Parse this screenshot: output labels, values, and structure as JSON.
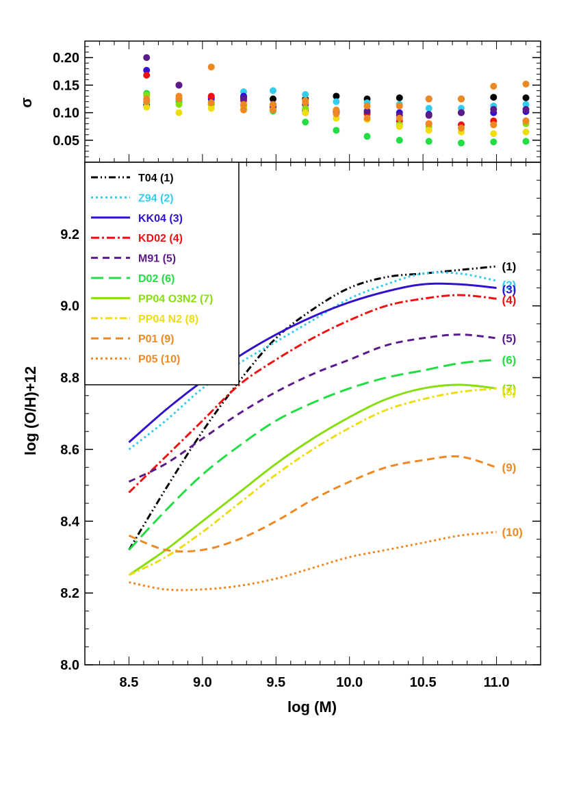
{
  "chart_data": [
    {
      "type": "scatter",
      "panel": "top",
      "ylabel": "σ",
      "xlim": [
        8.2,
        11.3
      ],
      "ylim": [
        0.01,
        0.23
      ],
      "yticks": [
        "0.20",
        "0.15",
        "0.10",
        "0.05"
      ],
      "ytick_values": [
        0.2,
        0.15,
        0.1,
        0.05
      ],
      "x": [
        8.62,
        8.84,
        9.06,
        9.28,
        9.48,
        9.7,
        9.91,
        10.12,
        10.34,
        10.54,
        10.76,
        10.98,
        11.2
      ],
      "series": [
        {
          "name": "T04",
          "color": "#000000",
          "values": [
            0.115,
            0.125,
            0.128,
            0.128,
            0.125,
            0.125,
            0.13,
            0.125,
            0.127,
            0.125,
            0.125,
            0.128,
            0.127
          ]
        },
        {
          "name": "Z94",
          "color": "#33ccee",
          "values": [
            0.118,
            0.12,
            0.12,
            0.138,
            0.14,
            0.133,
            0.12,
            0.118,
            0.115,
            0.108,
            0.108,
            0.112,
            0.115
          ]
        },
        {
          "name": "KK04",
          "color": "#3311cc",
          "values": [
            0.177,
            0.15,
            0.125,
            0.13,
            0.115,
            0.115,
            0.102,
            0.1,
            0.1,
            0.097,
            0.1,
            0.1,
            0.102
          ]
        },
        {
          "name": "KD02",
          "color": "#ee1111",
          "values": [
            0.168,
            0.15,
            0.13,
            0.122,
            0.11,
            0.1,
            0.1,
            0.098,
            0.085,
            0.08,
            0.078,
            0.085,
            0.085
          ]
        },
        {
          "name": "M91",
          "color": "#5a1a88",
          "values": [
            0.2,
            0.15,
            0.115,
            0.125,
            0.11,
            0.103,
            0.103,
            0.103,
            0.095,
            0.095,
            0.1,
            0.106,
            0.106
          ]
        },
        {
          "name": "D02",
          "color": "#22dd44",
          "values": [
            0.135,
            0.12,
            0.118,
            0.113,
            0.103,
            0.083,
            0.068,
            0.057,
            0.05,
            0.048,
            0.045,
            0.047,
            0.048
          ]
        },
        {
          "name": "PP04 O3N2",
          "color": "#88dd11",
          "values": [
            0.132,
            0.115,
            0.115,
            0.11,
            0.105,
            0.108,
            0.09,
            0.088,
            0.078,
            0.075,
            0.072,
            0.078,
            0.08
          ]
        },
        {
          "name": "PP04 N2",
          "color": "#eedd11",
          "values": [
            0.11,
            0.1,
            0.108,
            0.108,
            0.105,
            0.1,
            0.09,
            0.088,
            0.075,
            0.068,
            0.065,
            0.062,
            0.065
          ]
        },
        {
          "name": "P01",
          "color": "#ee8822",
          "values": [
            0.125,
            0.13,
            0.183,
            0.105,
            0.105,
            0.122,
            0.105,
            0.112,
            0.112,
            0.125,
            0.125,
            0.148,
            0.152
          ]
        },
        {
          "name": "P05",
          "color": "#ee8822",
          "values": [
            0.12,
            0.125,
            0.118,
            0.115,
            0.115,
            0.118,
            0.098,
            0.09,
            0.09,
            0.08,
            0.072,
            0.078,
            0.085
          ]
        }
      ]
    },
    {
      "type": "line",
      "panel": "bottom",
      "xlabel": "log (M)",
      "ylabel": "log (O/H)+12",
      "xlim": [
        8.2,
        11.3
      ],
      "ylim": [
        8.0,
        9.4
      ],
      "xticks": [
        "8.5",
        "9.0",
        "9.5",
        "10.0",
        "10.5",
        "11.0"
      ],
      "xtick_values": [
        8.5,
        9.0,
        9.5,
        10.0,
        10.5,
        11.0
      ],
      "yticks": [
        "8.0",
        "8.2",
        "8.4",
        "8.6",
        "8.8",
        "9.0",
        "9.2"
      ],
      "ytick_values": [
        8.0,
        8.2,
        8.4,
        8.6,
        8.8,
        9.0,
        9.2
      ],
      "x": [
        8.5,
        8.75,
        9.0,
        9.25,
        9.5,
        9.75,
        10.0,
        10.25,
        10.5,
        10.75,
        11.0
      ],
      "legend": {
        "placement": "top-left"
      },
      "series": [
        {
          "name": "T04",
          "tag": "(1)",
          "color": "#000000",
          "dash": "10,4,2,4,2,4",
          "values": [
            8.32,
            8.49,
            8.65,
            8.79,
            8.91,
            8.99,
            9.05,
            9.08,
            9.09,
            9.1,
            9.11
          ]
        },
        {
          "name": "Z94",
          "tag": "(2)",
          "color": "#33ccee",
          "dash": "3,4",
          "values": [
            8.6,
            8.68,
            8.77,
            8.84,
            8.9,
            8.96,
            9.02,
            9.06,
            9.09,
            9.09,
            9.07
          ]
        },
        {
          "name": "KK04",
          "tag": "(3)",
          "color": "#3311cc",
          "dash": "",
          "values": [
            8.62,
            8.71,
            8.79,
            8.86,
            8.92,
            8.97,
            9.01,
            9.04,
            9.06,
            9.06,
            9.05
          ]
        },
        {
          "name": "KD02",
          "tag": "(4)",
          "color": "#ee1111",
          "dash": "12,4,3,4",
          "values": [
            8.48,
            8.58,
            8.68,
            8.78,
            8.85,
            8.91,
            8.96,
            9.0,
            9.02,
            9.03,
            9.02
          ]
        },
        {
          "name": "M91",
          "tag": "(5)",
          "color": "#5a1a88",
          "dash": "10,7",
          "values": [
            8.51,
            8.56,
            8.63,
            8.7,
            8.76,
            8.81,
            8.85,
            8.89,
            8.91,
            8.92,
            8.91
          ]
        },
        {
          "name": "D02",
          "tag": "(6)",
          "color": "#22dd44",
          "dash": "18,8",
          "values": [
            8.32,
            8.43,
            8.53,
            8.61,
            8.68,
            8.73,
            8.77,
            8.8,
            8.82,
            8.84,
            8.85
          ]
        },
        {
          "name": "PP04 O3N2",
          "tag": "(7)",
          "color": "#88dd11",
          "dash": "",
          "values": [
            8.25,
            8.32,
            8.4,
            8.48,
            8.56,
            8.63,
            8.69,
            8.74,
            8.77,
            8.78,
            8.77
          ]
        },
        {
          "name": "PP04 N2",
          "tag": "(8)",
          "color": "#eedd11",
          "dash": "10,4,3,4",
          "values": [
            8.25,
            8.3,
            8.37,
            8.45,
            8.53,
            8.6,
            8.66,
            8.71,
            8.74,
            8.76,
            8.77
          ]
        },
        {
          "name": "P01",
          "tag": "(9)",
          "color": "#ee8822",
          "dash": "11,7",
          "values": [
            8.36,
            8.32,
            8.32,
            8.35,
            8.4,
            8.46,
            8.51,
            8.55,
            8.57,
            8.58,
            8.55
          ]
        },
        {
          "name": "P05",
          "tag": "(10)",
          "color": "#ee8822",
          "dash": "3,4",
          "values": [
            8.23,
            8.21,
            8.21,
            8.22,
            8.24,
            8.27,
            8.3,
            8.32,
            8.34,
            8.36,
            8.37
          ]
        }
      ],
      "legend_labels": [
        {
          "name": "T04",
          "tag": "(1)"
        },
        {
          "name": "Z94",
          "tag": "(2)"
        },
        {
          "name": "KK04",
          "tag": "(3)"
        },
        {
          "name": "KD02",
          "tag": "(4)"
        },
        {
          "name": "M91",
          "tag": "(5)"
        },
        {
          "name": "D02",
          "tag": "(6)"
        },
        {
          "name": "PP04 O3N2",
          "tag": "(7)"
        },
        {
          "name": "PP04 N2",
          "tag": "(8)"
        },
        {
          "name": "P01",
          "tag": "(9)"
        },
        {
          "name": "P05",
          "tag": "(10)"
        }
      ]
    }
  ]
}
